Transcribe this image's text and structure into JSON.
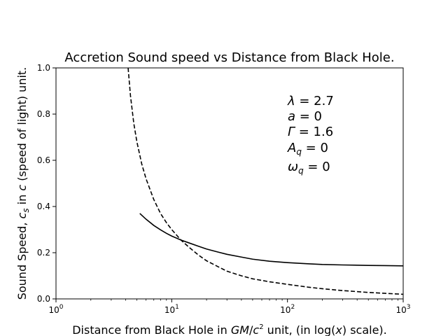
{
  "chart_data": {
    "type": "line",
    "title": "Accretion Sound speed vs Distance from Black Hole.",
    "xlabel": {
      "prefix": "Distance from Black Hole in ",
      "var1": "GM",
      "slash": "/",
      "var2": "c",
      "exp": "2",
      "mid": " unit, (in log(",
      "var3": "x",
      "suffix": ") scale)."
    },
    "ylabel": {
      "prefix": "Sound Speed, ",
      "var": "c",
      "sub": "s",
      "mid": " in ",
      "var2": "c",
      "suffix": " (speed of light) unit."
    },
    "x_scale": "log",
    "xlim": [
      1,
      1000
    ],
    "ylim": [
      0,
      1.0
    ],
    "x_ticks": [
      {
        "value": 1,
        "base": "10",
        "exp": "0"
      },
      {
        "value": 10,
        "base": "10",
        "exp": "1"
      },
      {
        "value": 100,
        "base": "10",
        "exp": "2"
      },
      {
        "value": 1000,
        "base": "10",
        "exp": "3"
      }
    ],
    "y_ticks": [
      {
        "value": 0.0,
        "label": "0.0"
      },
      {
        "value": 0.2,
        "label": "0.2"
      },
      {
        "value": 0.4,
        "label": "0.4"
      },
      {
        "value": 0.6,
        "label": "0.6"
      },
      {
        "value": 0.8,
        "label": "0.8"
      },
      {
        "value": 1.0,
        "label": "1.0"
      }
    ],
    "grid": false,
    "legend": "none",
    "series": [
      {
        "style": "solid",
        "color": "#000000",
        "x": [
          5.3,
          6,
          7,
          8,
          9,
          10,
          12,
          14,
          17,
          20,
          25,
          30,
          40,
          50,
          70,
          100,
          150,
          200,
          300,
          500,
          700,
          1000
        ],
        "y": [
          0.37,
          0.345,
          0.318,
          0.299,
          0.284,
          0.272,
          0.255,
          0.243,
          0.228,
          0.216,
          0.203,
          0.193,
          0.181,
          0.172,
          0.163,
          0.157,
          0.152,
          0.149,
          0.147,
          0.145,
          0.144,
          0.143
        ]
      },
      {
        "style": "dashed",
        "color": "#000000",
        "x": [
          4.2,
          4.4,
          4.7,
          5,
          5.5,
          6,
          7,
          8,
          9,
          10,
          12,
          14,
          17,
          20,
          25,
          30,
          40,
          50,
          70,
          100,
          150,
          200,
          300,
          500,
          700,
          1000
        ],
        "y": [
          1.0,
          0.88,
          0.76,
          0.68,
          0.585,
          0.52,
          0.43,
          0.37,
          0.33,
          0.3,
          0.255,
          0.225,
          0.19,
          0.165,
          0.14,
          0.12,
          0.1,
          0.087,
          0.074,
          0.063,
          0.051,
          0.044,
          0.036,
          0.028,
          0.024,
          0.02
        ]
      }
    ],
    "annotations": [
      {
        "sym": "λ",
        "rest": " = 2.7"
      },
      {
        "sym": "a",
        "rest": " = 0"
      },
      {
        "sym": "Γ",
        "rest": " = 1.6"
      },
      {
        "sym": "A",
        "sub": "q",
        "rest": " = 0"
      },
      {
        "sym": "ω",
        "sub": "q",
        "rest": " = 0"
      }
    ]
  }
}
